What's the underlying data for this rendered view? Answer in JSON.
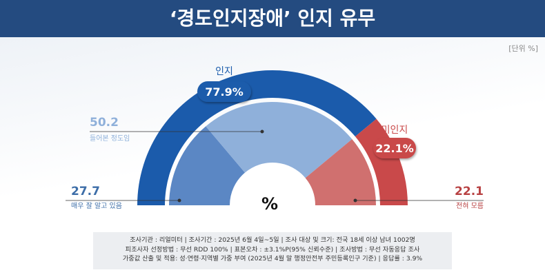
{
  "title": "‘경도인지장애’ 인지 유무",
  "unit": "[단위 %]",
  "center_label": "%",
  "footer": {
    "line1": "조사기관 : 리얼미터  |  조사기간 : 2025년 6월 4일~5일 | 조사 대상 및 크기: 전국 18세 이상 남녀 1002명",
    "line2": "피조사자 선정방법 : 무선 RDD 100% | 표본오차 : ±3.1%P(95% 신뢰수준) | 조사방법 : 무선 자동응답 조사",
    "line3": "가중값 산출 및 적용: 성·연령·지역별 가중 부여 (2025년 4월 말 행정안전부 주민등록인구 기준) | 응답률 : 3.9%"
  },
  "colors": {
    "header": "#244b80",
    "aware_outer": "#1b5bab",
    "unaware_outer": "#c9494a",
    "detail_blue_dark": "#5b87c4",
    "detail_blue_light": "#8fb0da",
    "detail_red": "#d0706f"
  },
  "chart_data": [
    {
      "type": "pie",
      "subtype": "semi-donut-outer",
      "categories": [
        "인지",
        "미인지"
      ],
      "values": [
        77.9,
        22.1
      ],
      "labels": [
        "77.9%",
        "22.1%"
      ]
    },
    {
      "type": "pie",
      "subtype": "semi-donut-inner",
      "categories": [
        "매우 잘 알고 있음",
        "들어본 정도임",
        "전혀 모름"
      ],
      "values": [
        27.7,
        50.2,
        22.1
      ],
      "labels": [
        "27.7",
        "50.2",
        "22.1"
      ]
    }
  ]
}
